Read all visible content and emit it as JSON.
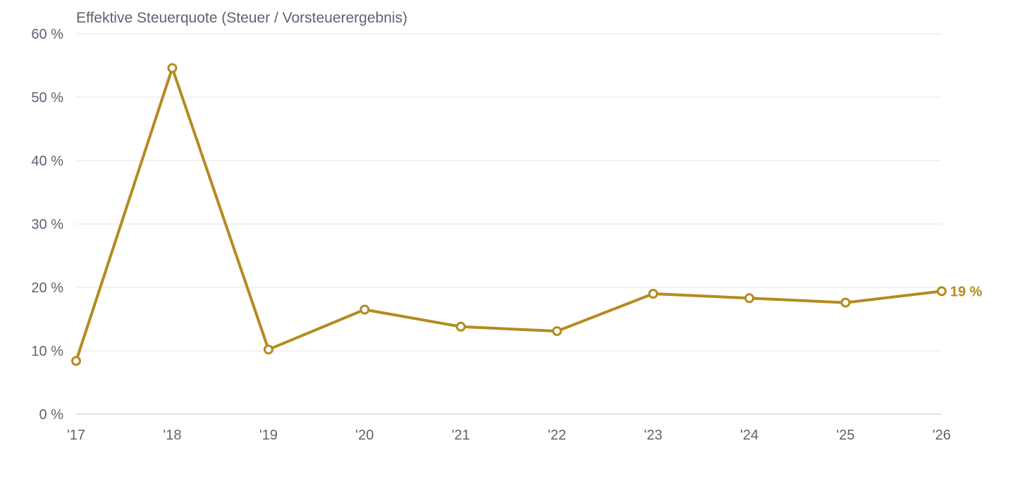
{
  "chart_data": {
    "type": "line",
    "title": "Effektive Steuerquote (Steuer / Vorsteuerergebnis)",
    "xlabel": "",
    "ylabel": "",
    "categories": [
      "'17",
      "'18",
      "'19",
      "'20",
      "'21",
      "'22",
      "'23",
      "'24",
      "'25",
      "'26"
    ],
    "series": [
      {
        "values": [
          8.4,
          54.6,
          10.2,
          16.5,
          13.8,
          13.1,
          19.0,
          18.3,
          17.6,
          19.4
        ],
        "color": "#b58a1f"
      }
    ],
    "ylim": [
      0,
      60
    ],
    "yticks": [
      0,
      10,
      20,
      30,
      40,
      50,
      60
    ],
    "ytick_labels": [
      "0 %",
      "10 %",
      "20 %",
      "30 %",
      "40 %",
      "50 %",
      "60 %"
    ],
    "end_label": "19 %",
    "grid": true,
    "legend": "none",
    "colors": {
      "line": "#b58a1f",
      "grid": "#e6e6e6",
      "text": "#5b6472",
      "background": "#ffffff"
    }
  }
}
